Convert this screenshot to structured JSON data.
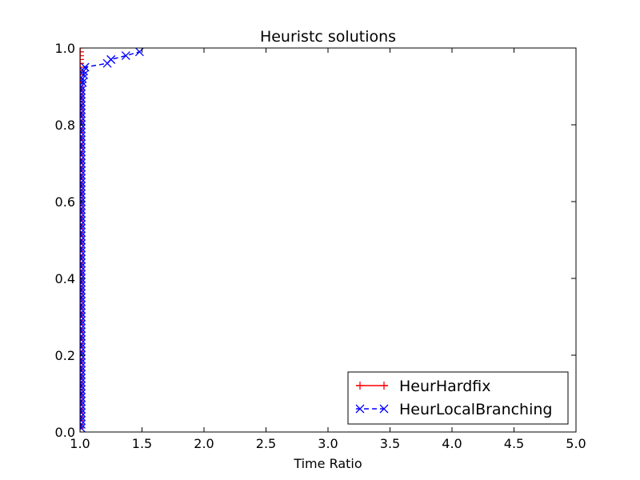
{
  "chart_data": {
    "type": "line",
    "title": "Heuristc solutions",
    "xlabel": "Time Ratio",
    "ylabel": "",
    "xlim": [
      1.0,
      5.0
    ],
    "ylim": [
      0.0,
      1.0
    ],
    "xticks": [
      "1.0",
      "1.5",
      "2.0",
      "2.5",
      "3.0",
      "3.5",
      "4.0",
      "4.5",
      "5.0"
    ],
    "yticks": [
      "0.0",
      "0.2",
      "0.4",
      "0.6",
      "0.8",
      "1.0"
    ],
    "grid": false,
    "legend_position": "lower-right",
    "series": [
      {
        "name": "HeurHardfix",
        "color": "#ff0000",
        "line_style": "solid",
        "marker": "plus",
        "x": [
          1.0,
          1.0,
          1.0,
          1.0,
          1.0,
          1.0,
          1.0,
          1.0,
          1.0,
          1.0,
          1.0,
          1.0,
          1.0,
          1.0,
          1.0,
          1.0,
          1.0,
          1.0,
          1.0,
          1.0,
          1.0,
          1.0,
          1.0,
          1.0,
          1.0,
          1.0,
          1.0,
          1.0,
          1.0,
          1.0,
          1.0,
          1.0,
          1.0,
          1.0,
          1.0,
          1.0,
          1.0,
          1.0,
          1.0,
          1.0,
          1.0,
          1.0,
          1.0,
          1.0,
          1.0,
          1.0,
          1.0,
          1.0,
          1.0,
          1.0,
          1.0,
          1.0,
          1.0,
          1.0,
          1.0,
          1.0,
          1.0,
          1.0,
          1.0,
          1.0,
          1.0,
          1.0,
          1.0,
          1.0,
          1.0,
          1.0,
          1.0,
          1.0,
          1.0,
          1.0,
          1.0,
          1.0,
          1.0,
          1.0,
          1.0,
          1.0,
          1.0,
          1.0,
          1.0,
          1.0,
          1.0,
          1.0,
          1.0,
          1.0,
          1.0,
          1.0,
          1.0,
          1.0,
          1.0,
          1.0,
          1.0,
          1.0,
          1.0,
          1.0,
          1.0,
          1.0,
          1.0,
          1.0,
          1.0,
          1.0
        ],
        "y": [
          0.01,
          0.02,
          0.03,
          0.04,
          0.05,
          0.06,
          0.07,
          0.08,
          0.09,
          0.1,
          0.11,
          0.12,
          0.13,
          0.14,
          0.15,
          0.16,
          0.17,
          0.18,
          0.19,
          0.2,
          0.21,
          0.22,
          0.23,
          0.24,
          0.25,
          0.26,
          0.27,
          0.28,
          0.29,
          0.3,
          0.31,
          0.32,
          0.33,
          0.34,
          0.35,
          0.36,
          0.37,
          0.38,
          0.39,
          0.4,
          0.41,
          0.42,
          0.43,
          0.44,
          0.45,
          0.46,
          0.47,
          0.48,
          0.49,
          0.5,
          0.51,
          0.52,
          0.53,
          0.54,
          0.55,
          0.56,
          0.57,
          0.58,
          0.59,
          0.6,
          0.61,
          0.62,
          0.63,
          0.64,
          0.65,
          0.66,
          0.67,
          0.68,
          0.69,
          0.7,
          0.71,
          0.72,
          0.73,
          0.74,
          0.75,
          0.76,
          0.77,
          0.78,
          0.79,
          0.8,
          0.81,
          0.82,
          0.83,
          0.84,
          0.85,
          0.86,
          0.87,
          0.88,
          0.89,
          0.9,
          0.91,
          0.92,
          0.93,
          0.94,
          0.95,
          0.96,
          0.97,
          0.98,
          0.99,
          1.0
        ]
      },
      {
        "name": "HeurLocalBranching",
        "color": "#0000ff",
        "line_style": "dashed",
        "marker": "x",
        "x": [
          1.01,
          1.01,
          1.01,
          1.01,
          1.01,
          1.01,
          1.01,
          1.01,
          1.01,
          1.01,
          1.01,
          1.01,
          1.01,
          1.01,
          1.01,
          1.01,
          1.01,
          1.01,
          1.01,
          1.01,
          1.01,
          1.01,
          1.01,
          1.01,
          1.01,
          1.01,
          1.01,
          1.01,
          1.01,
          1.01,
          1.01,
          1.01,
          1.01,
          1.01,
          1.01,
          1.01,
          1.01,
          1.01,
          1.01,
          1.01,
          1.01,
          1.01,
          1.01,
          1.01,
          1.01,
          1.01,
          1.01,
          1.01,
          1.01,
          1.01,
          1.01,
          1.01,
          1.01,
          1.01,
          1.01,
          1.01,
          1.01,
          1.01,
          1.01,
          1.01,
          1.01,
          1.01,
          1.01,
          1.01,
          1.01,
          1.01,
          1.01,
          1.01,
          1.01,
          1.01,
          1.01,
          1.01,
          1.01,
          1.01,
          1.01,
          1.01,
          1.01,
          1.01,
          1.01,
          1.01,
          1.01,
          1.01,
          1.01,
          1.01,
          1.01,
          1.01,
          1.01,
          1.01,
          1.01,
          1.01,
          1.02,
          1.02,
          1.03,
          1.03,
          1.04,
          1.22,
          1.25,
          1.25,
          1.37,
          1.48
        ],
        "y": [
          0.01,
          0.02,
          0.03,
          0.04,
          0.05,
          0.06,
          0.07,
          0.08,
          0.09,
          0.1,
          0.11,
          0.12,
          0.13,
          0.14,
          0.15,
          0.16,
          0.17,
          0.18,
          0.19,
          0.2,
          0.21,
          0.22,
          0.23,
          0.24,
          0.25,
          0.26,
          0.27,
          0.28,
          0.29,
          0.3,
          0.31,
          0.32,
          0.33,
          0.34,
          0.35,
          0.36,
          0.37,
          0.38,
          0.39,
          0.4,
          0.41,
          0.42,
          0.43,
          0.44,
          0.45,
          0.46,
          0.47,
          0.48,
          0.49,
          0.5,
          0.51,
          0.52,
          0.53,
          0.54,
          0.55,
          0.56,
          0.57,
          0.58,
          0.59,
          0.6,
          0.61,
          0.62,
          0.63,
          0.64,
          0.65,
          0.66,
          0.67,
          0.68,
          0.69,
          0.7,
          0.71,
          0.72,
          0.73,
          0.74,
          0.75,
          0.76,
          0.77,
          0.78,
          0.79,
          0.8,
          0.81,
          0.82,
          0.83,
          0.84,
          0.85,
          0.86,
          0.87,
          0.88,
          0.89,
          0.9,
          0.91,
          0.92,
          0.93,
          0.94,
          0.95,
          0.96,
          0.97,
          0.97,
          0.98,
          0.99
        ]
      }
    ]
  }
}
